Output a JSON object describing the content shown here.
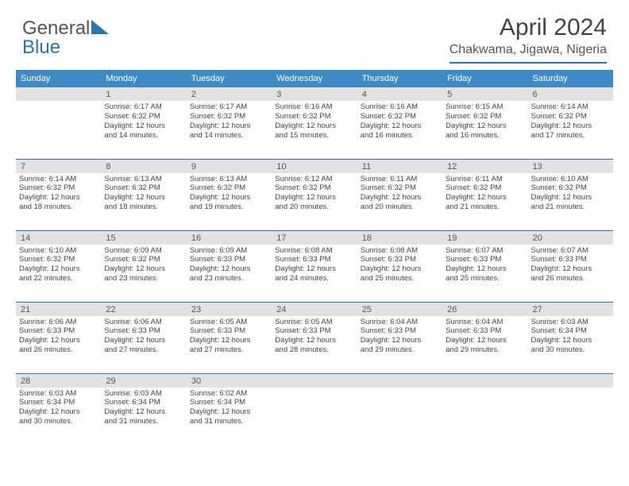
{
  "brand": {
    "part1": "General",
    "part2": "Blue"
  },
  "title": "April 2024",
  "location": "Chakwama, Jigawa, Nigeria",
  "dayHeaders": [
    "Sunday",
    "Monday",
    "Tuesday",
    "Wednesday",
    "Thursday",
    "Friday",
    "Saturday"
  ],
  "colors": {
    "headerBg": "#3d8ac7",
    "accent": "#2576b9",
    "dayNumBg": "#e2e2e2"
  },
  "weeks": [
    [
      {
        "num": "",
        "lines": []
      },
      {
        "num": "1",
        "lines": [
          "Sunrise: 6:17 AM",
          "Sunset: 6:32 PM",
          "Daylight: 12 hours",
          "and 14 minutes."
        ]
      },
      {
        "num": "2",
        "lines": [
          "Sunrise: 6:17 AM",
          "Sunset: 6:32 PM",
          "Daylight: 12 hours",
          "and 14 minutes."
        ]
      },
      {
        "num": "3",
        "lines": [
          "Sunrise: 6:16 AM",
          "Sunset: 6:32 PM",
          "Daylight: 12 hours",
          "and 15 minutes."
        ]
      },
      {
        "num": "4",
        "lines": [
          "Sunrise: 6:16 AM",
          "Sunset: 6:32 PM",
          "Daylight: 12 hours",
          "and 16 minutes."
        ]
      },
      {
        "num": "5",
        "lines": [
          "Sunrise: 6:15 AM",
          "Sunset: 6:32 PM",
          "Daylight: 12 hours",
          "and 16 minutes."
        ]
      },
      {
        "num": "6",
        "lines": [
          "Sunrise: 6:14 AM",
          "Sunset: 6:32 PM",
          "Daylight: 12 hours",
          "and 17 minutes."
        ]
      }
    ],
    [
      {
        "num": "7",
        "lines": [
          "Sunrise: 6:14 AM",
          "Sunset: 6:32 PM",
          "Daylight: 12 hours",
          "and 18 minutes."
        ]
      },
      {
        "num": "8",
        "lines": [
          "Sunrise: 6:13 AM",
          "Sunset: 6:32 PM",
          "Daylight: 12 hours",
          "and 18 minutes."
        ]
      },
      {
        "num": "9",
        "lines": [
          "Sunrise: 6:13 AM",
          "Sunset: 6:32 PM",
          "Daylight: 12 hours",
          "and 19 minutes."
        ]
      },
      {
        "num": "10",
        "lines": [
          "Sunrise: 6:12 AM",
          "Sunset: 6:32 PM",
          "Daylight: 12 hours",
          "and 20 minutes."
        ]
      },
      {
        "num": "11",
        "lines": [
          "Sunrise: 6:11 AM",
          "Sunset: 6:32 PM",
          "Daylight: 12 hours",
          "and 20 minutes."
        ]
      },
      {
        "num": "12",
        "lines": [
          "Sunrise: 6:11 AM",
          "Sunset: 6:32 PM",
          "Daylight: 12 hours",
          "and 21 minutes."
        ]
      },
      {
        "num": "13",
        "lines": [
          "Sunrise: 6:10 AM",
          "Sunset: 6:32 PM",
          "Daylight: 12 hours",
          "and 21 minutes."
        ]
      }
    ],
    [
      {
        "num": "14",
        "lines": [
          "Sunrise: 6:10 AM",
          "Sunset: 6:32 PM",
          "Daylight: 12 hours",
          "and 22 minutes."
        ]
      },
      {
        "num": "15",
        "lines": [
          "Sunrise: 6:09 AM",
          "Sunset: 6:32 PM",
          "Daylight: 12 hours",
          "and 23 minutes."
        ]
      },
      {
        "num": "16",
        "lines": [
          "Sunrise: 6:09 AM",
          "Sunset: 6:33 PM",
          "Daylight: 12 hours",
          "and 23 minutes."
        ]
      },
      {
        "num": "17",
        "lines": [
          "Sunrise: 6:08 AM",
          "Sunset: 6:33 PM",
          "Daylight: 12 hours",
          "and 24 minutes."
        ]
      },
      {
        "num": "18",
        "lines": [
          "Sunrise: 6:08 AM",
          "Sunset: 6:33 PM",
          "Daylight: 12 hours",
          "and 25 minutes."
        ]
      },
      {
        "num": "19",
        "lines": [
          "Sunrise: 6:07 AM",
          "Sunset: 6:33 PM",
          "Daylight: 12 hours",
          "and 25 minutes."
        ]
      },
      {
        "num": "20",
        "lines": [
          "Sunrise: 6:07 AM",
          "Sunset: 6:33 PM",
          "Daylight: 12 hours",
          "and 26 minutes."
        ]
      }
    ],
    [
      {
        "num": "21",
        "lines": [
          "Sunrise: 6:06 AM",
          "Sunset: 6:33 PM",
          "Daylight: 12 hours",
          "and 26 minutes."
        ]
      },
      {
        "num": "22",
        "lines": [
          "Sunrise: 6:06 AM",
          "Sunset: 6:33 PM",
          "Daylight: 12 hours",
          "and 27 minutes."
        ]
      },
      {
        "num": "23",
        "lines": [
          "Sunrise: 6:05 AM",
          "Sunset: 6:33 PM",
          "Daylight: 12 hours",
          "and 27 minutes."
        ]
      },
      {
        "num": "24",
        "lines": [
          "Sunrise: 6:05 AM",
          "Sunset: 6:33 PM",
          "Daylight: 12 hours",
          "and 28 minutes."
        ]
      },
      {
        "num": "25",
        "lines": [
          "Sunrise: 6:04 AM",
          "Sunset: 6:33 PM",
          "Daylight: 12 hours",
          "and 29 minutes."
        ]
      },
      {
        "num": "26",
        "lines": [
          "Sunrise: 6:04 AM",
          "Sunset: 6:33 PM",
          "Daylight: 12 hours",
          "and 29 minutes."
        ]
      },
      {
        "num": "27",
        "lines": [
          "Sunrise: 6:03 AM",
          "Sunset: 6:34 PM",
          "Daylight: 12 hours",
          "and 30 minutes."
        ]
      }
    ],
    [
      {
        "num": "28",
        "lines": [
          "Sunrise: 6:03 AM",
          "Sunset: 6:34 PM",
          "Daylight: 12 hours",
          "and 30 minutes."
        ]
      },
      {
        "num": "29",
        "lines": [
          "Sunrise: 6:03 AM",
          "Sunset: 6:34 PM",
          "Daylight: 12 hours",
          "and 31 minutes."
        ]
      },
      {
        "num": "30",
        "lines": [
          "Sunrise: 6:02 AM",
          "Sunset: 6:34 PM",
          "Daylight: 12 hours",
          "and 31 minutes."
        ]
      },
      {
        "num": "",
        "lines": []
      },
      {
        "num": "",
        "lines": []
      },
      {
        "num": "",
        "lines": []
      },
      {
        "num": "",
        "lines": []
      }
    ]
  ]
}
